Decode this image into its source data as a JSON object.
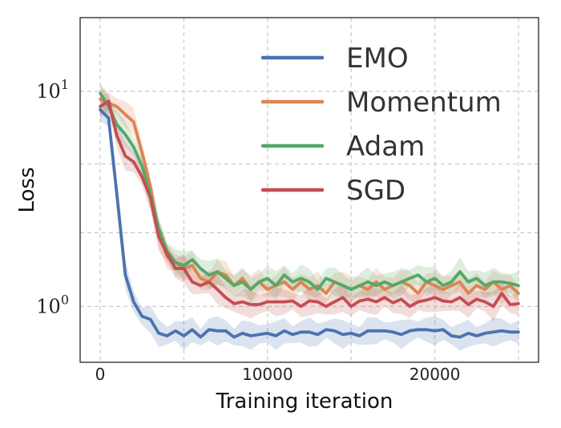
{
  "chart_data": {
    "type": "line",
    "xlabel": "Training iteration",
    "ylabel": "Loss",
    "yscale": "log",
    "xlim": [
      -1200,
      26200
    ],
    "ylim": [
      0.55,
      22
    ],
    "xticks": [
      {
        "value": 0,
        "label": "0"
      },
      {
        "value": 10000,
        "label": "10000"
      },
      {
        "value": 20000,
        "label": "20000"
      }
    ],
    "yticks": [
      {
        "value": 1,
        "base": "10",
        "exp": "0"
      },
      {
        "value": 10,
        "base": "10",
        "exp": "1"
      }
    ],
    "grid_x": [
      0,
      5000,
      10000,
      15000,
      20000,
      25000
    ],
    "grid_y": [
      1,
      2.2,
      4.6,
      10
    ],
    "grid": true,
    "legend_position": "top-right",
    "x": [
      0,
      500,
      1000,
      1500,
      2000,
      2500,
      3000,
      3500,
      4000,
      4500,
      5000,
      5500,
      6000,
      6500,
      7000,
      7500,
      8000,
      8500,
      9000,
      9500,
      10000,
      10500,
      11000,
      11500,
      12000,
      12500,
      13000,
      13500,
      14000,
      14500,
      15000,
      15500,
      16000,
      16500,
      17000,
      17500,
      18000,
      18500,
      19000,
      19500,
      20000,
      20500,
      21000,
      21500,
      22000,
      22500,
      23000,
      23500,
      24000,
      24500,
      25000
    ],
    "series": [
      {
        "name": "EMO",
        "color": "#4c72b0",
        "values": [
          8.2,
          7.5,
          3.3,
          1.4,
          1.05,
          0.9,
          0.87,
          0.75,
          0.73,
          0.77,
          0.73,
          0.78,
          0.72,
          0.78,
          0.77,
          0.77,
          0.72,
          0.75,
          0.73,
          0.74,
          0.75,
          0.73,
          0.77,
          0.74,
          0.76,
          0.76,
          0.74,
          0.78,
          0.77,
          0.74,
          0.75,
          0.73,
          0.77,
          0.77,
          0.77,
          0.76,
          0.74,
          0.77,
          0.78,
          0.78,
          0.77,
          0.78,
          0.73,
          0.72,
          0.75,
          0.73,
          0.75,
          0.76,
          0.77,
          0.76,
          0.76
        ]
      },
      {
        "name": "Momentum",
        "color": "#dd8452",
        "values": [
          9.2,
          8.8,
          8.5,
          7.8,
          7.2,
          5.2,
          3.6,
          2.2,
          1.7,
          1.6,
          1.5,
          1.55,
          1.35,
          1.3,
          1.45,
          1.4,
          1.25,
          1.35,
          1.2,
          1.3,
          1.2,
          1.25,
          1.3,
          1.2,
          1.3,
          1.2,
          1.25,
          1.15,
          1.3,
          1.25,
          1.2,
          1.25,
          1.2,
          1.3,
          1.2,
          1.25,
          1.3,
          1.25,
          1.15,
          1.3,
          1.25,
          1.2,
          1.25,
          1.3,
          1.15,
          1.25,
          1.2,
          1.3,
          1.2,
          1.25,
          1.15
        ]
      },
      {
        "name": "Adam",
        "color": "#55a868",
        "values": [
          9.8,
          8.5,
          7.0,
          6.3,
          5.5,
          4.5,
          3.3,
          2.3,
          1.8,
          1.6,
          1.55,
          1.65,
          1.5,
          1.4,
          1.45,
          1.35,
          1.25,
          1.3,
          1.2,
          1.3,
          1.35,
          1.25,
          1.4,
          1.3,
          1.35,
          1.3,
          1.2,
          1.35,
          1.3,
          1.25,
          1.2,
          1.25,
          1.3,
          1.25,
          1.3,
          1.25,
          1.3,
          1.35,
          1.4,
          1.3,
          1.35,
          1.25,
          1.3,
          1.45,
          1.3,
          1.35,
          1.25,
          1.3,
          1.3,
          1.28,
          1.25
        ]
      },
      {
        "name": "SGD",
        "color": "#c44e52",
        "values": [
          8.5,
          9.0,
          6.2,
          5.0,
          4.7,
          4.0,
          3.2,
          2.1,
          1.75,
          1.5,
          1.5,
          1.3,
          1.25,
          1.3,
          1.2,
          1.1,
          1.03,
          1.05,
          1.02,
          1.02,
          1.05,
          1.05,
          1.05,
          1.06,
          1.0,
          1.06,
          1.05,
          1.0,
          1.05,
          1.1,
          1.0,
          1.06,
          1.08,
          1.05,
          1.1,
          1.04,
          1.08,
          1.0,
          1.05,
          1.07,
          1.1,
          1.06,
          1.05,
          1.1,
          1.02,
          1.08,
          1.05,
          1.0,
          1.15,
          1.02,
          1.03
        ]
      }
    ]
  }
}
